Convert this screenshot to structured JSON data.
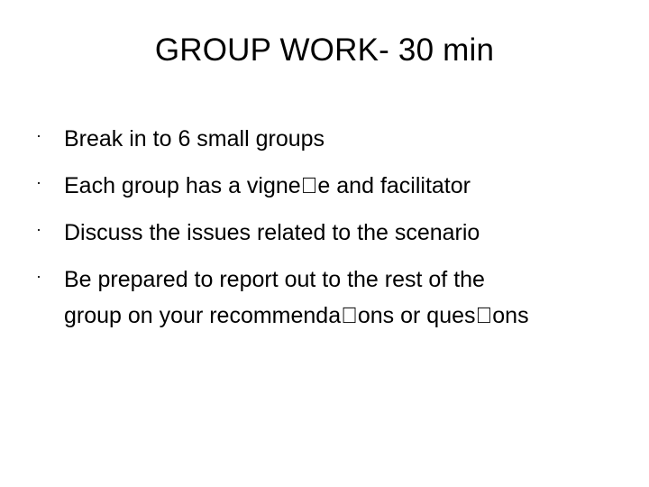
{
  "slide": {
    "title": "GROUP WORK- 30 min",
    "bullet_char": "·",
    "bullets": [
      {
        "lines": [
          "Break in to 6 small groups"
        ]
      },
      {
        "lines": [
          "Each group has a vigne\u0000e and facilitator"
        ]
      },
      {
        "lines": [
          "Discuss the issues related to the scenario"
        ]
      },
      {
        "lines": [
          "Be prepared to report out to the rest of the",
          "group on your recommenda\u0000ons or ques\u0000ons"
        ]
      }
    ]
  }
}
